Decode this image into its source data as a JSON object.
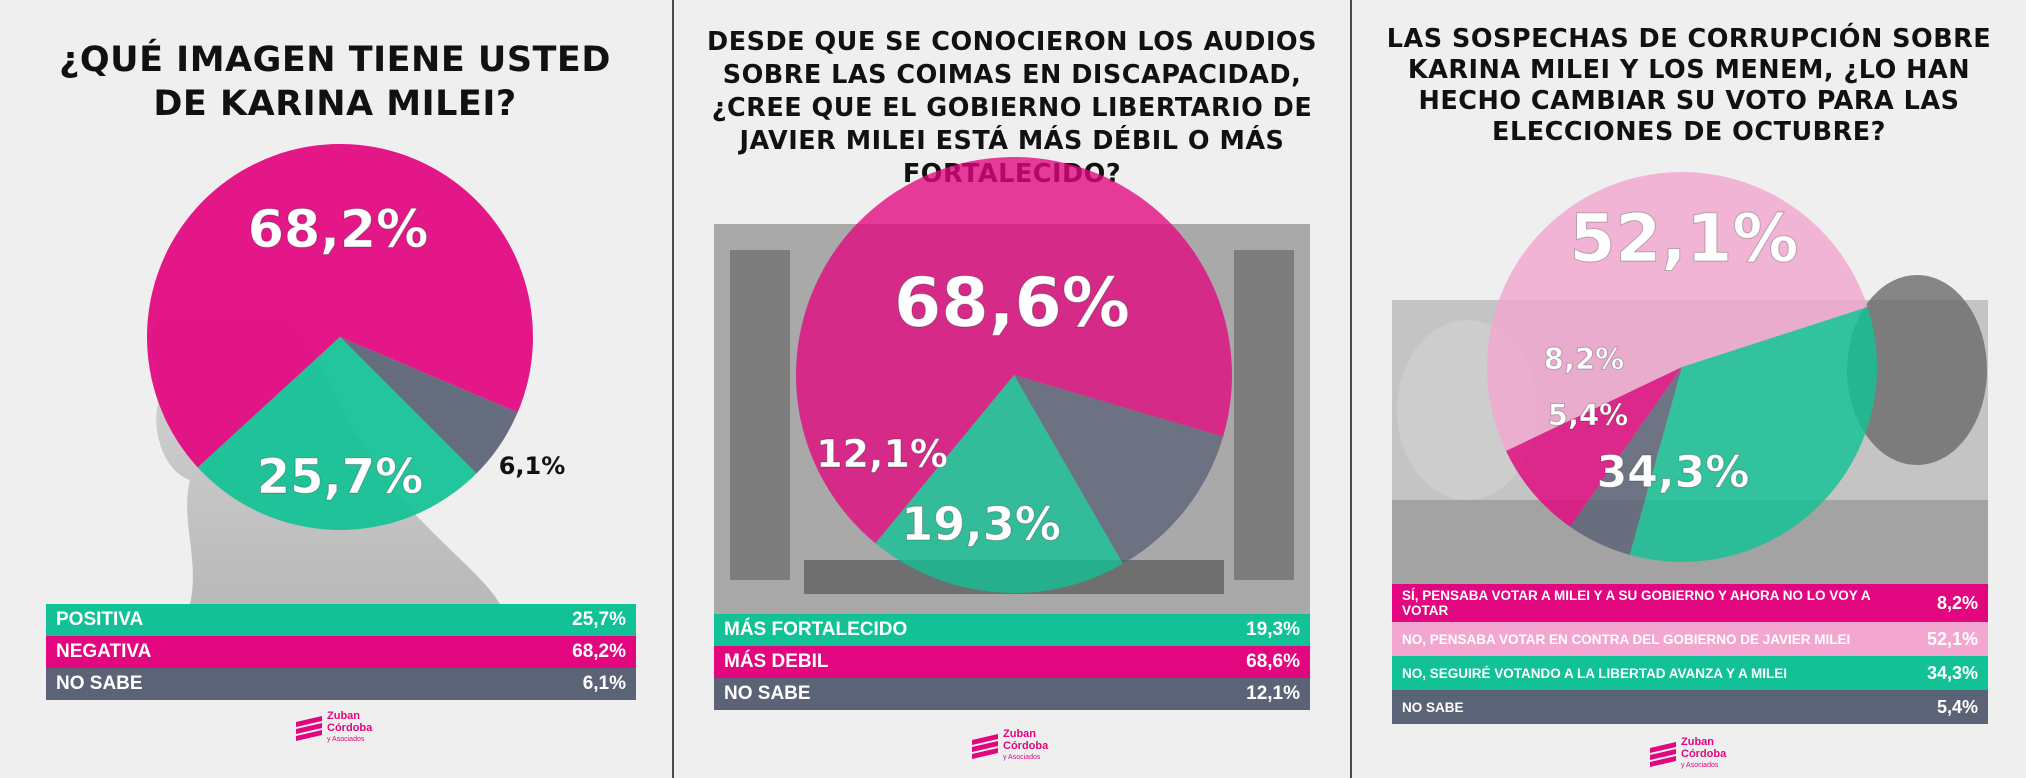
{
  "colors": {
    "magenta": "#e2067f",
    "teal": "#12c296",
    "gray": "#5b6376",
    "light_pink": "#f3a7d0"
  },
  "logo": {
    "line1": "Zuban",
    "line2": "Córdoba",
    "line3": "y Asociados"
  },
  "chart_data": [
    {
      "type": "pie",
      "title": "¿QUÉ IMAGEN TIENE USTED DE KARINA MILEI?",
      "categories": [
        "POSITIVA",
        "NEGATIVA",
        "NO SABE"
      ],
      "values": [
        25.7,
        68.2,
        6.1
      ],
      "value_labels": [
        "25,7%",
        "68,2%",
        "6,1%"
      ],
      "colors": [
        "#12c296",
        "#e2067f",
        "#5b6376"
      ]
    },
    {
      "type": "pie",
      "title": "DESDE QUE SE CONOCIERON LOS AUDIOS SOBRE LAS COIMAS EN DISCAPACIDAD, ¿CREE QUE EL GOBIERNO LIBERTARIO DE JAVIER MILEI ESTÁ MÁS DÉBIL O MÁS FORTALECIDO?",
      "categories": [
        "MÁS FORTALECIDO",
        "MÁS DEBIL",
        "NO SABE"
      ],
      "values": [
        19.3,
        68.6,
        12.1
      ],
      "value_labels": [
        "19,3%",
        "68,6%",
        "12,1%"
      ],
      "colors": [
        "#12c296",
        "#e2067f",
        "#5b6376"
      ]
    },
    {
      "type": "pie",
      "title": "LAS SOSPECHAS DE CORRUPCIÓN SOBRE KARINA MILEI Y LOS MENEM, ¿LO HAN HECHO CAMBIAR SU VOTO PARA LAS ELECCIONES DE OCTUBRE?",
      "categories": [
        "SÍ, PENSABA VOTAR A MILEI Y A SU GOBIERNO Y AHORA NO LO VOY A VOTAR",
        "NO, PENSABA VOTAR EN CONTRA DEL GOBIERNO DE JAVIER MILEI",
        "NO, SEGUIRÉ VOTANDO A LA LIBERTAD AVANZA Y A MILEI",
        "NO SABE"
      ],
      "values": [
        8.2,
        52.1,
        34.3,
        5.4
      ],
      "value_labels": [
        "8,2%",
        "52,1%",
        "34,3%",
        "5,4%"
      ],
      "colors": [
        "#e2067f",
        "#f3a7d0",
        "#12c296",
        "#5b6376"
      ]
    }
  ]
}
